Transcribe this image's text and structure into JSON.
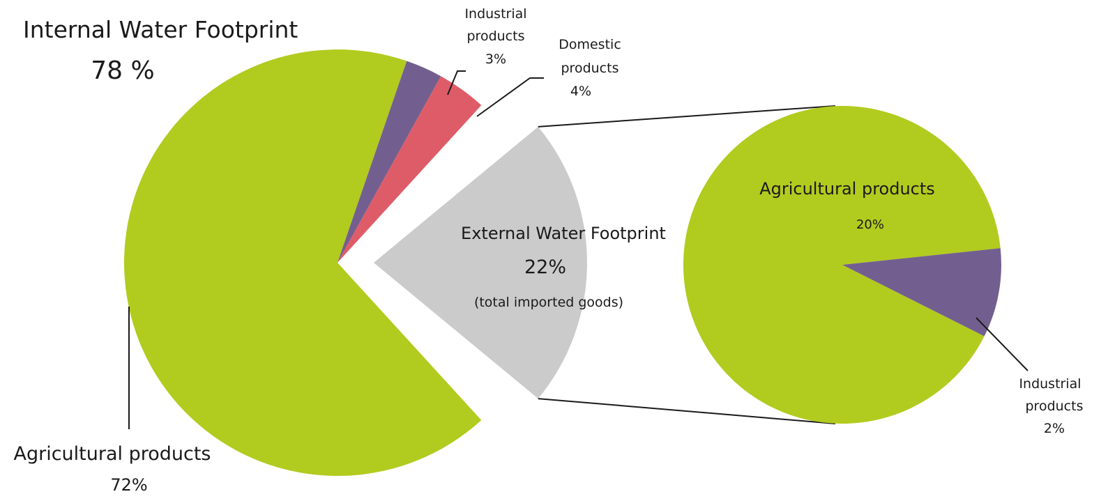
{
  "chart_data": [
    {
      "type": "pie",
      "title": "Internal Water Footprint",
      "title_value": "78 %",
      "total_percent": 100,
      "slices": [
        {
          "key": "agri",
          "label": "Agricultural products",
          "value_label": "72%",
          "value": 72,
          "color": "#b2cb1f",
          "group": "internal"
        },
        {
          "key": "ind",
          "label_lines": [
            "Industrial",
            "products"
          ],
          "value_label": "3%",
          "value": 3,
          "color": "#735f8f",
          "group": "internal"
        },
        {
          "key": "dom",
          "label_lines": [
            "Domestic",
            "products"
          ],
          "value_label": "4%",
          "value": 4,
          "color": "#de5c68",
          "group": "internal"
        },
        {
          "key": "ext",
          "label": "External Water Footprint",
          "value_label": "22%",
          "note": "(total imported goods)",
          "value": 22,
          "color": "#cbcbcb",
          "group": "external",
          "exploded": true
        }
      ]
    },
    {
      "type": "pie",
      "breakdown_of": "External Water Footprint",
      "slices": [
        {
          "key": "agri",
          "label": "Agricultural products",
          "value_label": "20%",
          "value": 20,
          "color": "#b2cb1f"
        },
        {
          "key": "ind",
          "label_lines": [
            "Industrial",
            "products"
          ],
          "value_label": "2%",
          "value": 2,
          "color": "#735f8f"
        }
      ]
    }
  ]
}
